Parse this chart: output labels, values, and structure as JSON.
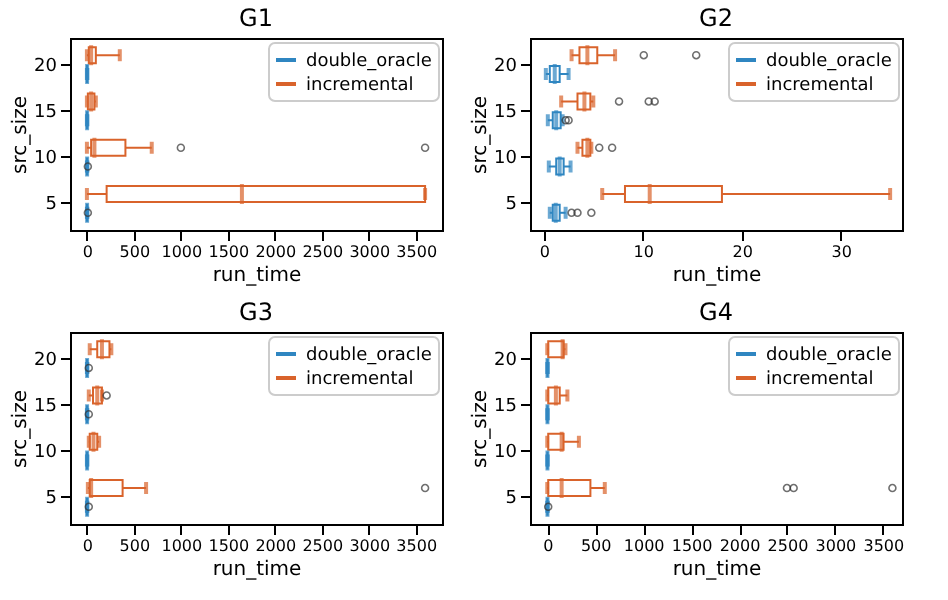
{
  "chart_data": [
    {
      "type": "box",
      "title": "G1",
      "xlabel": "run_time",
      "ylabel": "src_size",
      "orientation": "horizontal",
      "legend": "top right",
      "categories": [
        "20",
        "15",
        "10",
        "5"
      ],
      "xlim": [
        -180,
        3780
      ],
      "xticks": [
        0,
        500,
        1000,
        1500,
        2000,
        2500,
        3000,
        3500
      ],
      "series": [
        {
          "name": "double_oracle",
          "color": "#2f86c1",
          "boxes": [
            {
              "low": 0,
              "q1": 1,
              "median": 2,
              "q3": 3,
              "high": 5
            },
            {
              "low": 0,
              "q1": 1,
              "median": 2,
              "q3": 3,
              "high": 5
            },
            {
              "low": 0,
              "q1": 1,
              "median": 2,
              "q3": 3,
              "high": 5,
              "outliers": [
                10
              ]
            },
            {
              "low": 0,
              "q1": 1,
              "median": 2,
              "q3": 3,
              "high": 5,
              "outliers": [
                10
              ]
            }
          ]
        },
        {
          "name": "incremental",
          "color": "#d9632b",
          "boxes": [
            {
              "low": 0,
              "q1": 20,
              "median": 45,
              "q3": 95,
              "high": 350
            },
            {
              "low": 0,
              "q1": 10,
              "median": 45,
              "q3": 80,
              "high": 95
            },
            {
              "low": 0,
              "q1": 45,
              "median": 80,
              "q3": 410,
              "high": 690,
              "outliers": [
                1000,
                3600
              ]
            },
            {
              "low": 0,
              "q1": 210,
              "median": 1650,
              "q3": 3600,
              "high": 3600
            }
          ]
        }
      ]
    },
    {
      "type": "box",
      "title": "G2",
      "xlabel": "run_time",
      "ylabel": "src_size",
      "orientation": "horizontal",
      "legend": "top right",
      "categories": [
        "20",
        "15",
        "10",
        "5"
      ],
      "xlim": [
        -1.4,
        36.2
      ],
      "xticks": [
        0,
        10,
        20,
        30
      ],
      "series": [
        {
          "name": "double_oracle",
          "color": "#2f86c1",
          "boxes": [
            {
              "low": 0.2,
              "q1": 0.6,
              "median": 1.1,
              "q3": 1.6,
              "high": 2.5
            },
            {
              "low": 0.4,
              "q1": 0.9,
              "median": 1.25,
              "q3": 1.7,
              "high": 1.9,
              "outliers": [
                2.2,
                2.5
              ]
            },
            {
              "low": 0.5,
              "q1": 1.25,
              "median": 1.6,
              "q3": 2.0,
              "high": 2.7
            },
            {
              "low": 0.6,
              "q1": 0.9,
              "median": 1.2,
              "q3": 1.6,
              "high": 2.2,
              "outliers": [
                2.8,
                3.4,
                4.8
              ]
            }
          ]
        },
        {
          "name": "incremental",
          "color": "#d9632b",
          "boxes": [
            {
              "low": 2.8,
              "q1": 3.6,
              "median": 4.4,
              "q3": 5.4,
              "high": 7.2,
              "outliers": [
                10.1,
                15.4
              ]
            },
            {
              "low": 1.75,
              "q1": 3.4,
              "median": 4.1,
              "q3": 4.7,
              "high": 5.0,
              "outliers": [
                7.6,
                10.6,
                11.2
              ]
            },
            {
              "low": 3.4,
              "q1": 3.9,
              "median": 4.4,
              "q3": 4.7,
              "high": 4.8,
              "outliers": [
                5.6,
                6.9
              ]
            },
            {
              "low": 5.9,
              "q1": 8.2,
              "median": 10.7,
              "q3": 18,
              "high": 35
            }
          ]
        }
      ]
    },
    {
      "type": "box",
      "title": "G3",
      "xlabel": "run_time",
      "ylabel": "src_size",
      "orientation": "horizontal",
      "legend": "top right",
      "categories": [
        "20",
        "15",
        "10",
        "5"
      ],
      "xlim": [
        -180,
        3780
      ],
      "xticks": [
        0,
        500,
        1000,
        1500,
        2000,
        2500,
        3000,
        3500
      ],
      "series": [
        {
          "name": "double_oracle",
          "color": "#2f86c1",
          "boxes": [
            {
              "low": 0,
              "q1": 1,
              "median": 2,
              "q3": 3,
              "high": 5,
              "outliers": [
                20
              ]
            },
            {
              "low": 0,
              "q1": 1,
              "median": 2,
              "q3": 3,
              "high": 5,
              "outliers": [
                20
              ]
            },
            {
              "low": 0,
              "q1": 1,
              "median": 2,
              "q3": 3,
              "high": 5
            },
            {
              "low": 0,
              "q1": 1,
              "median": 2,
              "q3": 3,
              "high": 5,
              "outliers": [
                20
              ]
            }
          ]
        },
        {
          "name": "incremental",
          "color": "#d9632b",
          "boxes": [
            {
              "low": 30,
              "q1": 110,
              "median": 160,
              "q3": 240,
              "high": 260
            },
            {
              "low": 20,
              "q1": 65,
              "median": 110,
              "q3": 160,
              "high": 160,
              "outliers": [
                210
              ]
            },
            {
              "low": 20,
              "q1": 30,
              "median": 70,
              "q3": 110,
              "high": 130
            },
            {
              "low": 10,
              "q1": 30,
              "median": 45,
              "q3": 380,
              "high": 630,
              "outliers": [
                3600
              ]
            }
          ]
        }
      ]
    },
    {
      "type": "box",
      "title": "G4",
      "xlabel": "run_time",
      "ylabel": "src_size",
      "orientation": "horizontal",
      "legend": "top right",
      "categories": [
        "20",
        "15",
        "10",
        "5"
      ],
      "xlim": [
        -180,
        3700
      ],
      "xticks": [
        0,
        500,
        1000,
        1500,
        2000,
        2500,
        3000,
        3500
      ],
      "series": [
        {
          "name": "double_oracle",
          "color": "#2f86c1",
          "boxes": [
            {
              "low": 0,
              "q1": 1,
              "median": 2,
              "q3": 3,
              "high": 5
            },
            {
              "low": 0,
              "q1": 1,
              "median": 2,
              "q3": 3,
              "high": 5
            },
            {
              "low": 0,
              "q1": 1,
              "median": 2,
              "q3": 3,
              "high": 5
            },
            {
              "low": 0,
              "q1": 1,
              "median": 2,
              "q3": 3,
              "high": 5,
              "outliers": [
                10
              ]
            }
          ]
        },
        {
          "name": "incremental",
          "color": "#d9632b",
          "boxes": [
            {
              "low": 0,
              "q1": 10,
              "median": 160,
              "q3": 170,
              "high": 190
            },
            {
              "low": 0,
              "q1": 10,
              "median": 90,
              "q3": 130,
              "high": 210
            },
            {
              "low": 0,
              "q1": 10,
              "median": 150,
              "q3": 170,
              "high": 330
            },
            {
              "low": 0,
              "q1": 10,
              "median": 150,
              "q3": 450,
              "high": 600,
              "outliers": [
                2500,
                2570,
                3600
              ]
            }
          ]
        }
      ]
    }
  ]
}
